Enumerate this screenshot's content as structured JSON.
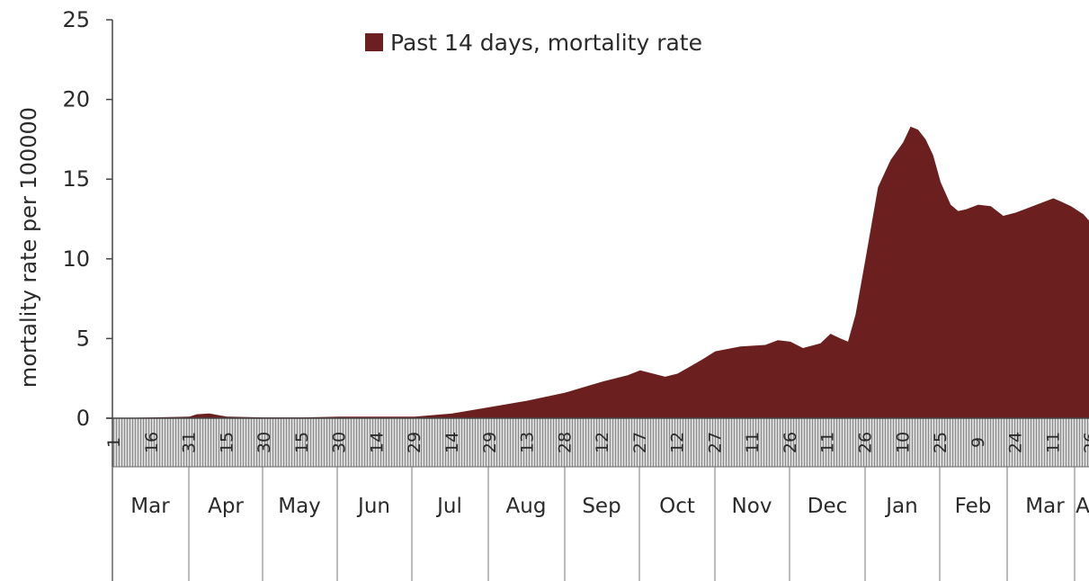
{
  "chart_data": {
    "type": "area",
    "title": "",
    "ylabel": "mortality rate per 100000",
    "xlabel": "",
    "ylim": [
      0,
      25
    ],
    "y_ticks": [
      0,
      5,
      10,
      15,
      20,
      25
    ],
    "legend": {
      "position": "top-center",
      "entries": [
        "Past 14 days, mortality rate"
      ]
    },
    "colors": {
      "series": "#6b1f1f",
      "axis": "#555555",
      "grid_shade": "#c8c8c8"
    },
    "x_day_ticks": [
      "1",
      "16",
      "31",
      "15",
      "30",
      "15",
      "30",
      "14",
      "29",
      "14",
      "29",
      "13",
      "28",
      "12",
      "27",
      "12",
      "27",
      "11",
      "26",
      "11",
      "26",
      "10",
      "25",
      "9",
      "24",
      "11",
      "26"
    ],
    "month_labels": [
      "Mar",
      "Apr",
      "May",
      "Jun",
      "Jul",
      "Aug",
      "Sep",
      "Oct",
      "Nov",
      "Dec",
      "Jan",
      "Feb",
      "Mar",
      "A"
    ],
    "series": [
      {
        "name": "Past 14 days, mortality rate",
        "x_day_index": [
          0,
          15,
          30,
          33,
          38,
          45,
          60,
          75,
          90,
          105,
          120,
          135,
          150,
          165,
          180,
          195,
          205,
          210,
          220,
          225,
          235,
          240,
          250,
          260,
          265,
          270,
          275,
          282,
          286,
          290,
          293,
          296,
          300,
          305,
          310,
          315,
          318,
          321,
          324,
          327,
          330,
          334,
          337,
          340,
          345,
          350,
          355,
          360,
          365,
          370,
          375,
          378,
          382,
          387,
          392
        ],
        "values": [
          0,
          0.05,
          0.1,
          0.25,
          0.3,
          0.1,
          0.05,
          0.05,
          0.1,
          0.1,
          0.1,
          0.3,
          0.7,
          1.1,
          1.6,
          2.3,
          2.7,
          3.0,
          2.6,
          2.8,
          3.7,
          4.2,
          4.5,
          4.6,
          4.9,
          4.8,
          4.4,
          4.7,
          5.3,
          5.0,
          4.8,
          6.5,
          10.0,
          14.5,
          16.2,
          17.3,
          18.3,
          18.1,
          17.5,
          16.5,
          14.8,
          13.4,
          13.0,
          13.1,
          13.4,
          13.3,
          12.7,
          12.9,
          13.2,
          13.5,
          13.8,
          13.6,
          13.3,
          12.8,
          12.4
        ]
      }
    ]
  }
}
